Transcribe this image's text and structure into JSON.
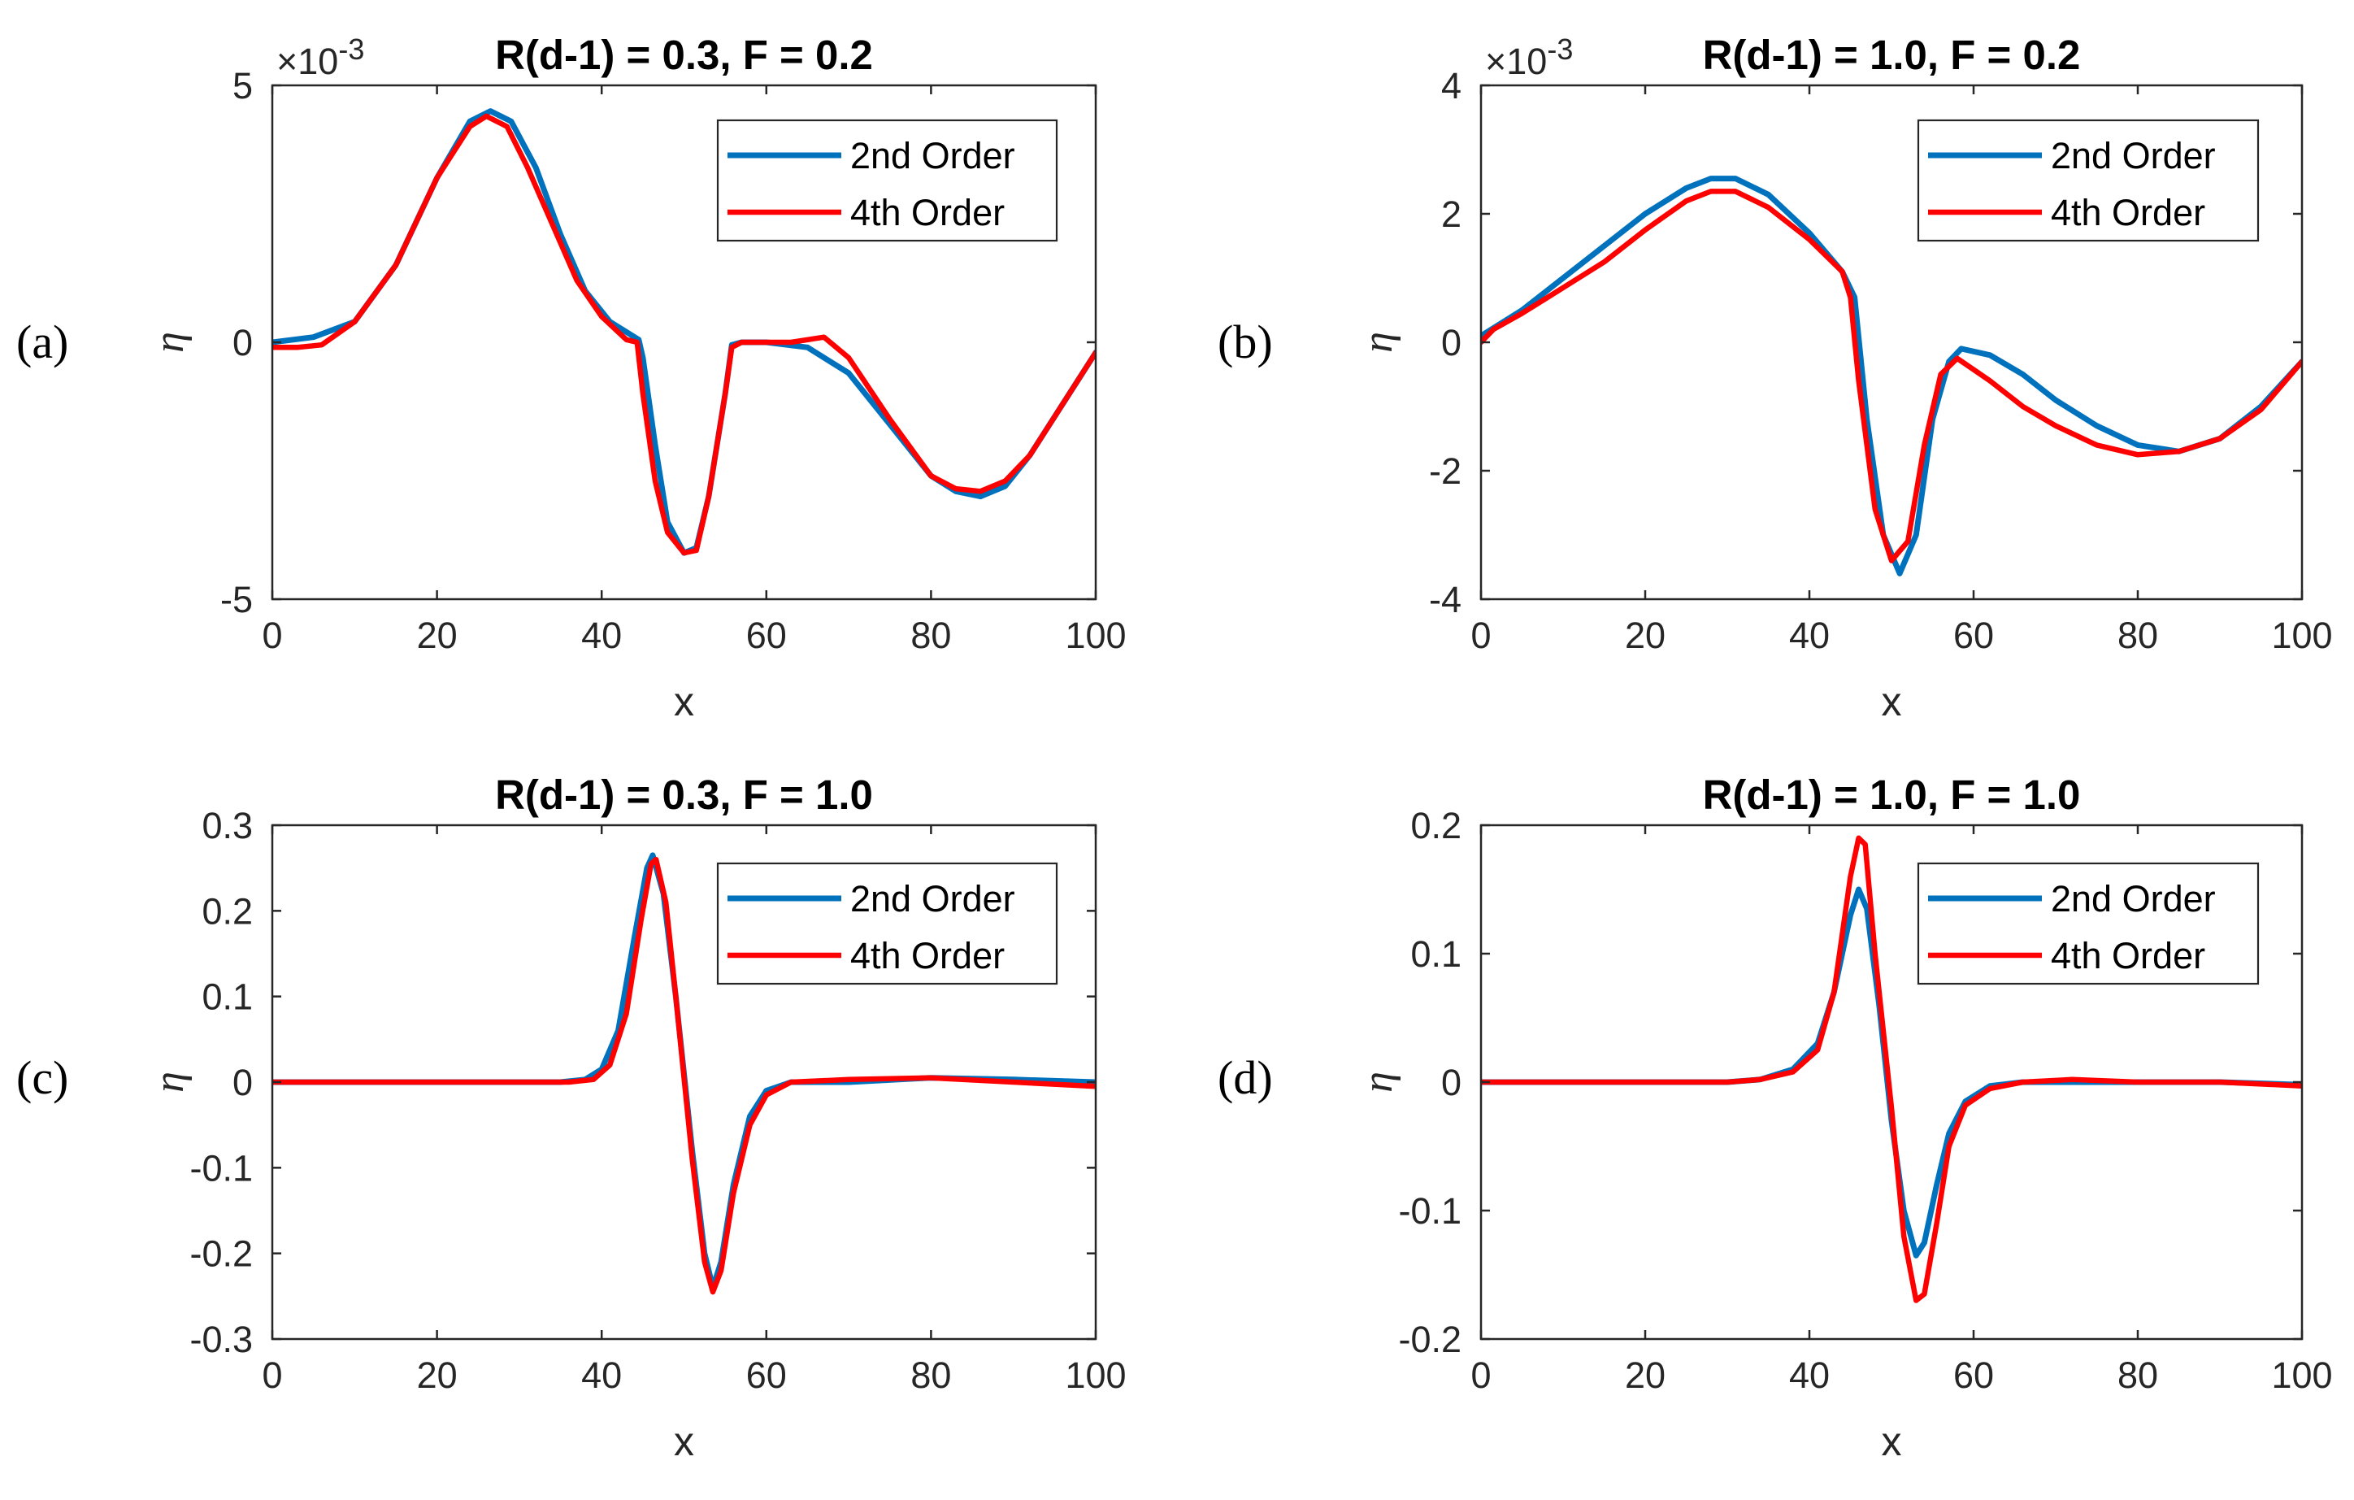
{
  "figure": {
    "colors": {
      "second_order": "#0072BD",
      "fourth_order": "#FF0000",
      "axes": "#262626"
    }
  },
  "chart_data": [
    {
      "type": "line",
      "panel_label": "(a)",
      "title": "R(d-1) = 0.3, F = 0.2",
      "xlabel": "x",
      "ylabel": "η",
      "xlim": [
        0,
        100
      ],
      "ylim": [
        -5,
        5
      ],
      "xticks": [
        0,
        20,
        40,
        60,
        80,
        100
      ],
      "xtick_labels": [
        "0",
        "20",
        "40",
        "60",
        "80",
        "100"
      ],
      "yticks": [
        -5,
        0,
        5
      ],
      "ytick_labels": [
        "-5",
        "0",
        "5"
      ],
      "y_exponent_base": "×10",
      "y_exponent_power": "-3",
      "legend": [
        "2nd Order",
        "4th Order"
      ],
      "series": [
        {
          "name": "2nd Order",
          "color": "#0072BD",
          "x": [
            0,
            5,
            10,
            15,
            20,
            24,
            26.5,
            29,
            32,
            35,
            38,
            41,
            44.5,
            45,
            46.5,
            48,
            50,
            51.5,
            53,
            55,
            55.8,
            57,
            60,
            65,
            70,
            75,
            80,
            83,
            86,
            89,
            92,
            96,
            100
          ],
          "y": [
            0.0,
            0.1,
            0.4,
            1.5,
            3.2,
            4.3,
            4.5,
            4.3,
            3.4,
            2.1,
            1.0,
            0.4,
            0.05,
            -0.3,
            -2.0,
            -3.5,
            -4.1,
            -4.0,
            -3.0,
            -1.0,
            -0.05,
            0.0,
            0.0,
            -0.1,
            -0.6,
            -1.6,
            -2.6,
            -2.9,
            -3.0,
            -2.8,
            -2.2,
            -1.2,
            -0.2
          ]
        },
        {
          "name": "4th Order",
          "color": "#FF0000",
          "x": [
            0,
            3,
            6,
            10,
            15,
            20,
            24,
            26,
            28.5,
            31,
            34,
            37,
            40,
            43,
            44.3,
            45,
            46.5,
            48,
            50,
            51.5,
            53,
            55,
            55.8,
            57,
            60,
            63,
            67,
            70,
            75,
            80,
            83,
            86,
            89,
            92,
            96,
            100
          ],
          "y": [
            -0.1,
            -0.1,
            -0.05,
            0.4,
            1.5,
            3.2,
            4.2,
            4.4,
            4.2,
            3.4,
            2.3,
            1.2,
            0.5,
            0.05,
            0.0,
            -1.0,
            -2.7,
            -3.7,
            -4.1,
            -4.05,
            -3.0,
            -1.0,
            -0.1,
            0.0,
            0.0,
            0.0,
            0.1,
            -0.3,
            -1.5,
            -2.6,
            -2.85,
            -2.9,
            -2.7,
            -2.2,
            -1.2,
            -0.2
          ]
        }
      ]
    },
    {
      "type": "line",
      "panel_label": "(b)",
      "title": "R(d-1) = 1.0, F = 0.2",
      "xlabel": "x",
      "ylabel": "η",
      "xlim": [
        0,
        100
      ],
      "ylim": [
        -4,
        4
      ],
      "xticks": [
        0,
        20,
        40,
        60,
        80,
        100
      ],
      "xtick_labels": [
        "0",
        "20",
        "40",
        "60",
        "80",
        "100"
      ],
      "yticks": [
        -4,
        -2,
        0,
        2,
        4
      ],
      "ytick_labels": [
        "-4",
        "-2",
        "0",
        "2",
        "4"
      ],
      "y_exponent_base": "×10",
      "y_exponent_power": "-3",
      "legend": [
        "2nd Order",
        "4th Order"
      ],
      "series": [
        {
          "name": "2nd Order",
          "color": "#0072BD",
          "x": [
            0,
            5,
            10,
            15,
            20,
            25,
            28,
            31,
            35,
            40,
            44,
            45.5,
            47,
            49,
            51,
            53,
            55,
            57,
            58.5,
            62,
            66,
            70,
            75,
            80,
            85,
            90,
            95,
            100
          ],
          "y": [
            0.1,
            0.5,
            1.0,
            1.5,
            2.0,
            2.4,
            2.55,
            2.55,
            2.3,
            1.7,
            1.1,
            0.7,
            -1.2,
            -3.0,
            -3.6,
            -3.0,
            -1.2,
            -0.3,
            -0.1,
            -0.2,
            -0.5,
            -0.9,
            -1.3,
            -1.6,
            -1.7,
            -1.5,
            -1.0,
            -0.3
          ]
        },
        {
          "name": "4th Order",
          "color": "#FF0000",
          "x": [
            0,
            1.5,
            5,
            10,
            15,
            20,
            25,
            28,
            31,
            35,
            40,
            44,
            45,
            46,
            48,
            50,
            52,
            54,
            56,
            58,
            62,
            66,
            70,
            75,
            80,
            85,
            90,
            95,
            100
          ],
          "y": [
            0.0,
            0.2,
            0.45,
            0.85,
            1.25,
            1.75,
            2.2,
            2.35,
            2.35,
            2.1,
            1.6,
            1.1,
            0.7,
            -0.6,
            -2.6,
            -3.4,
            -3.1,
            -1.6,
            -0.5,
            -0.25,
            -0.6,
            -1.0,
            -1.3,
            -1.6,
            -1.75,
            -1.7,
            -1.5,
            -1.05,
            -0.3
          ]
        }
      ]
    },
    {
      "type": "line",
      "panel_label": "(c)",
      "title": "R(d-1) = 0.3, F = 1.0",
      "xlabel": "x",
      "ylabel": "η",
      "xlim": [
        0,
        100
      ],
      "ylim": [
        -0.3,
        0.3
      ],
      "xticks": [
        0,
        20,
        40,
        60,
        80,
        100
      ],
      "xtick_labels": [
        "0",
        "20",
        "40",
        "60",
        "80",
        "100"
      ],
      "yticks": [
        -0.3,
        -0.2,
        -0.1,
        0,
        0.1,
        0.2,
        0.3
      ],
      "ytick_labels": [
        "-0.3",
        "-0.2",
        "-0.1",
        "0",
        "0.1",
        "0.2",
        "0.3"
      ],
      "legend": [
        "2nd Order",
        "4th Order"
      ],
      "series": [
        {
          "name": "2nd Order",
          "color": "#0072BD",
          "x": [
            0,
            35,
            38,
            40,
            42,
            44,
            45.5,
            46.2,
            47.5,
            49,
            51,
            52.5,
            53.5,
            54.5,
            56,
            58,
            60,
            63,
            70,
            80,
            90,
            100
          ],
          "y": [
            0.0,
            0.0,
            0.003,
            0.015,
            0.06,
            0.17,
            0.25,
            0.265,
            0.22,
            0.1,
            -0.08,
            -0.2,
            -0.24,
            -0.21,
            -0.12,
            -0.04,
            -0.01,
            0.0,
            0.0,
            0.005,
            0.003,
            0.0
          ]
        },
        {
          "name": "4th Order",
          "color": "#FF0000",
          "x": [
            0,
            36,
            39,
            41,
            43,
            44.8,
            46,
            46.6,
            47.8,
            49,
            51,
            52.5,
            53.5,
            54.5,
            56,
            58,
            60,
            63,
            70,
            80,
            90,
            100
          ],
          "y": [
            0.0,
            0.0,
            0.003,
            0.02,
            0.08,
            0.19,
            0.255,
            0.26,
            0.21,
            0.1,
            -0.09,
            -0.21,
            -0.245,
            -0.22,
            -0.13,
            -0.05,
            -0.015,
            0.0,
            0.003,
            0.005,
            0.0,
            -0.005
          ]
        }
      ]
    },
    {
      "type": "line",
      "panel_label": "(d)",
      "title": "R(d-1) = 1.0, F = 1.0",
      "xlabel": "x",
      "ylabel": "η",
      "xlim": [
        0,
        100
      ],
      "ylim": [
        -0.2,
        0.2
      ],
      "xticks": [
        0,
        20,
        40,
        60,
        80,
        100
      ],
      "xtick_labels": [
        "0",
        "20",
        "40",
        "60",
        "80",
        "100"
      ],
      "yticks": [
        -0.2,
        -0.1,
        0,
        0.1,
        0.2
      ],
      "ytick_labels": [
        "-0.2",
        "-0.1",
        "0",
        "0.1",
        "0.2"
      ],
      "legend": [
        "2nd Order",
        "4th Order"
      ],
      "series": [
        {
          "name": "2nd Order",
          "color": "#0072BD",
          "x": [
            0,
            30,
            34,
            38,
            41,
            43,
            45,
            46,
            47,
            48.5,
            50,
            51.5,
            53,
            54,
            55.5,
            57,
            59,
            62,
            66,
            72,
            80,
            90,
            100
          ],
          "y": [
            0.0,
            0.0,
            0.002,
            0.01,
            0.03,
            0.07,
            0.13,
            0.15,
            0.135,
            0.06,
            -0.03,
            -0.1,
            -0.135,
            -0.125,
            -0.08,
            -0.04,
            -0.015,
            -0.003,
            0.0,
            0.0,
            0.0,
            0.0,
            -0.002
          ]
        },
        {
          "name": "4th Order",
          "color": "#FF0000",
          "x": [
            0,
            30,
            34,
            38,
            41,
            43,
            45,
            46,
            46.8,
            48,
            50,
            51.5,
            53,
            54,
            55.5,
            57,
            59,
            62,
            66,
            72,
            80,
            90,
            100
          ],
          "y": [
            0.0,
            0.0,
            0.002,
            0.008,
            0.025,
            0.07,
            0.16,
            0.19,
            0.185,
            0.1,
            -0.02,
            -0.12,
            -0.17,
            -0.165,
            -0.11,
            -0.05,
            -0.018,
            -0.005,
            0.0,
            0.002,
            0.0,
            0.0,
            -0.003
          ]
        }
      ]
    }
  ]
}
